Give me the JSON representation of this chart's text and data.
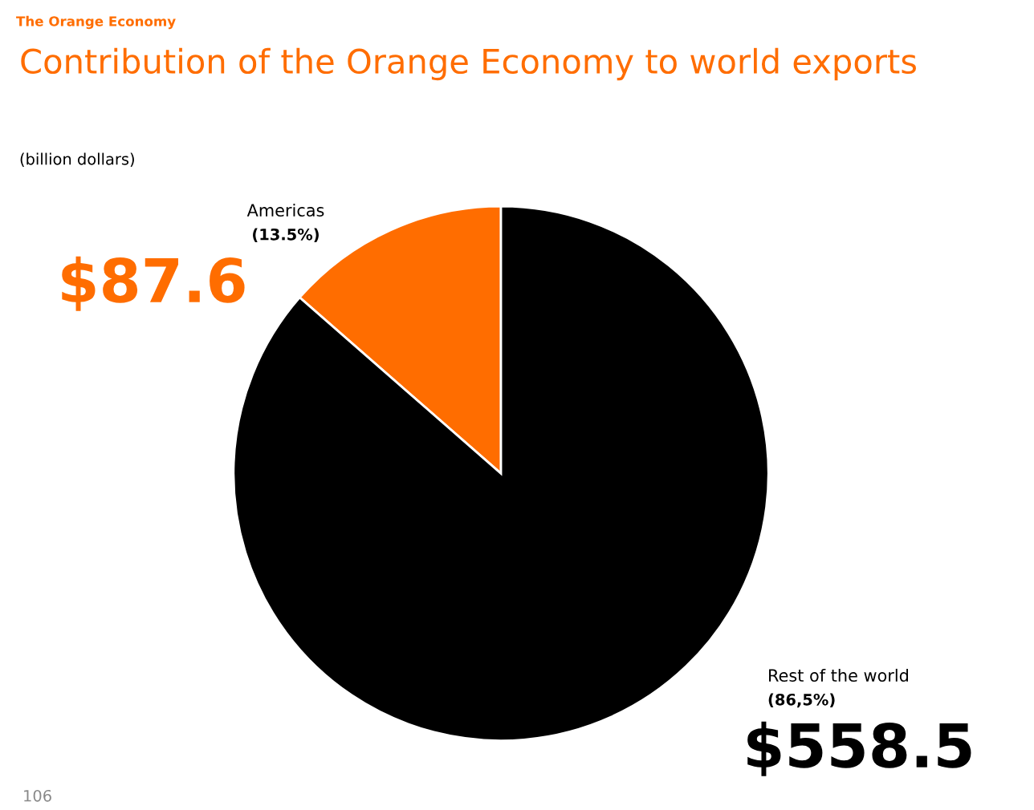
{
  "chart_data": {
    "type": "pie",
    "title": "Contribution of the Orange Economy to world exports",
    "subtitle": "(billion dollars)",
    "categories": [
      "Americas",
      "Rest of the world"
    ],
    "values": [
      87.6,
      558.5
    ],
    "colors": [
      "#ff6d00",
      "#000000"
    ],
    "value_labels": [
      "$87.6",
      "$558.5"
    ],
    "annotations": [
      "The Orange Economy",
      "(13.5%)",
      "(86,5%)",
      "106"
    ]
  }
}
